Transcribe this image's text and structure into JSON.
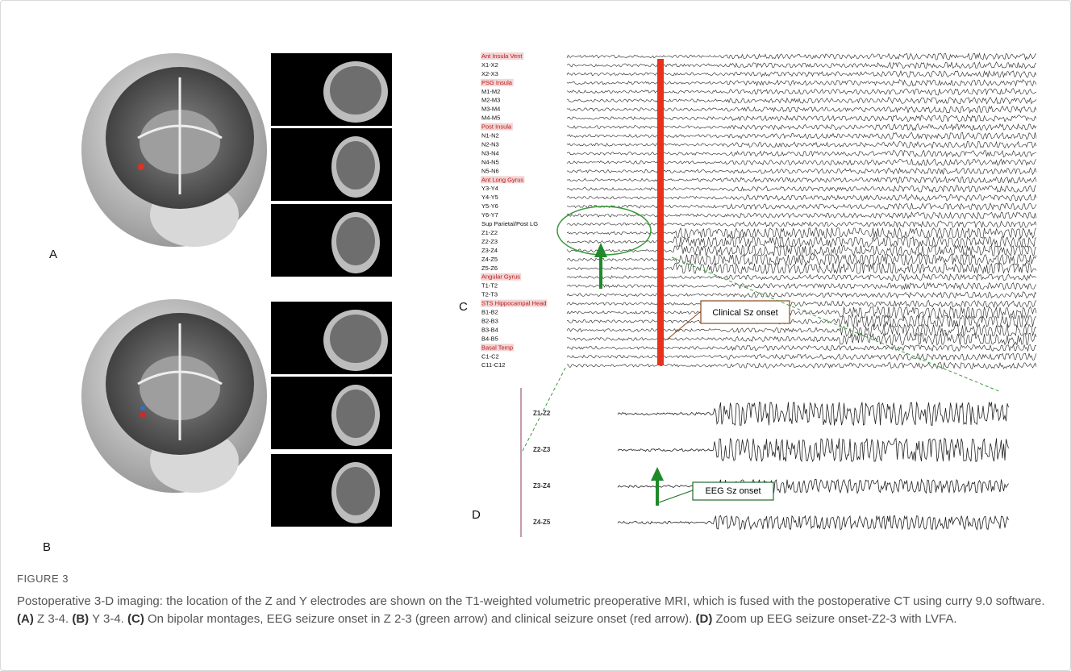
{
  "panels": {
    "a": "A",
    "b": "B",
    "c": "C",
    "d": "D"
  },
  "channels": [
    {
      "label": "Ant Insula Vent",
      "highlight": true
    },
    {
      "label": "X1-X2",
      "highlight": false
    },
    {
      "label": "X2-X3",
      "highlight": false
    },
    {
      "label": "PSG Insula",
      "highlight": true
    },
    {
      "label": "M1-M2",
      "highlight": false
    },
    {
      "label": "M2-M3",
      "highlight": false
    },
    {
      "label": "M3-M4",
      "highlight": false
    },
    {
      "label": "M4-M5",
      "highlight": false
    },
    {
      "label": "Post Insula",
      "highlight": true
    },
    {
      "label": "N1-N2",
      "highlight": false
    },
    {
      "label": "N2-N3",
      "highlight": false
    },
    {
      "label": "N3-N4",
      "highlight": false
    },
    {
      "label": "N4-N5",
      "highlight": false
    },
    {
      "label": "N5-N6",
      "highlight": false
    },
    {
      "label": "Ant Long Gyrus",
      "highlight": true
    },
    {
      "label": "Y3-Y4",
      "highlight": false
    },
    {
      "label": "Y4-Y5",
      "highlight": false
    },
    {
      "label": "Y5-Y6",
      "highlight": false
    },
    {
      "label": "Y6-Y7",
      "highlight": false
    },
    {
      "label": "Sup Parietal/Post LG",
      "highlight": false
    },
    {
      "label": "Z1-Z2",
      "highlight": false
    },
    {
      "label": "Z2-Z3",
      "highlight": false
    },
    {
      "label": "Z3-Z4",
      "highlight": false
    },
    {
      "label": "Z4-Z5",
      "highlight": false
    },
    {
      "label": "Z5-Z6",
      "highlight": false
    },
    {
      "label": "Angular Gyrus",
      "highlight": true
    },
    {
      "label": "T1-T2",
      "highlight": false
    },
    {
      "label": "T2-T3",
      "highlight": false
    },
    {
      "label": "STS Hippocampal Head",
      "highlight": true
    },
    {
      "label": "B1-B2",
      "highlight": false
    },
    {
      "label": "B2-B3",
      "highlight": false
    },
    {
      "label": "B3-B4",
      "highlight": false
    },
    {
      "label": "B4-B5",
      "highlight": false
    },
    {
      "label": "Basal Temp",
      "highlight": true
    },
    {
      "label": "C1-C2",
      "highlight": false
    },
    {
      "label": "C11-C12",
      "highlight": false
    }
  ],
  "annotations": {
    "clinical": "Clinical Sz onset",
    "eeg": "EEG Sz onset"
  },
  "zoom_channels": [
    "Z1-Z2",
    "Z2-Z3",
    "Z3-Z4",
    "Z4-Z5"
  ],
  "caption": {
    "label": "FIGURE 3",
    "intro": "Postoperative 3-D imaging: the location of the Z and Y electrodes are shown on the T1-weighted volumetric preoperative MRI, which is fused with the postoperative CT using curry 9.0 software.",
    "items": [
      {
        "tag": "(A)",
        "text": "Z 3-4."
      },
      {
        "tag": "(B)",
        "text": "Y 3-4."
      },
      {
        "tag": "(C)",
        "text": "On bipolar montages, EEG seizure onset in Z 2-3 (green arrow) and clinical seizure onset (red arrow)."
      },
      {
        "tag": "(D)",
        "text": "Zoom up EEG seizure onset-Z2-3 with LVFA."
      }
    ]
  }
}
